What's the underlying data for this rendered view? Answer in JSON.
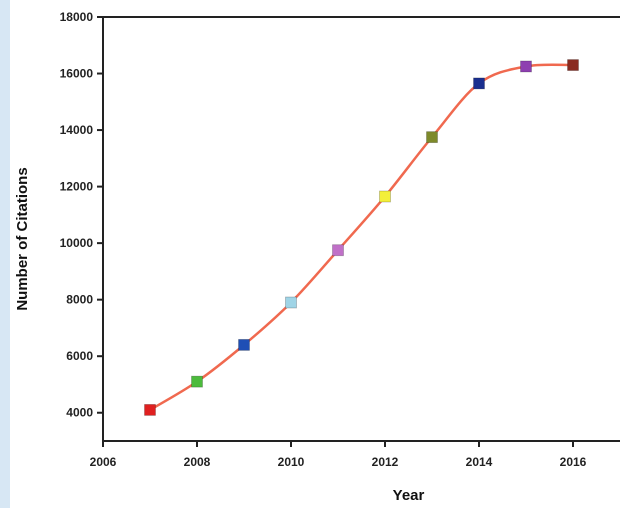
{
  "chart_data": {
    "type": "line",
    "title": "",
    "xlabel": "Year",
    "ylabel": "Number of Citations",
    "xlim": [
      2006,
      2017
    ],
    "ylim": [
      3000,
      18000
    ],
    "x_ticks": [
      2006,
      2008,
      2010,
      2012,
      2014,
      2016
    ],
    "y_ticks": [
      4000,
      6000,
      8000,
      10000,
      12000,
      14000,
      16000,
      18000
    ],
    "grid": false,
    "legend": "none",
    "line_color": "#f0694f",
    "series": [
      {
        "x": [
          2007,
          2008,
          2009,
          2010,
          2011,
          2012,
          2013,
          2014,
          2015,
          2016
        ],
        "y": [
          4100,
          5100,
          6400,
          7900,
          9750,
          11650,
          13750,
          15650,
          16250,
          16300
        ],
        "marker_colors": [
          "#e02020",
          "#4cbb3c",
          "#1f4fb5",
          "#9fd4e6",
          "#c070c8",
          "#f3ef3a",
          "#7e8a2a",
          "#1a2f8f",
          "#8e3fb0",
          "#8a2a20"
        ]
      }
    ]
  }
}
